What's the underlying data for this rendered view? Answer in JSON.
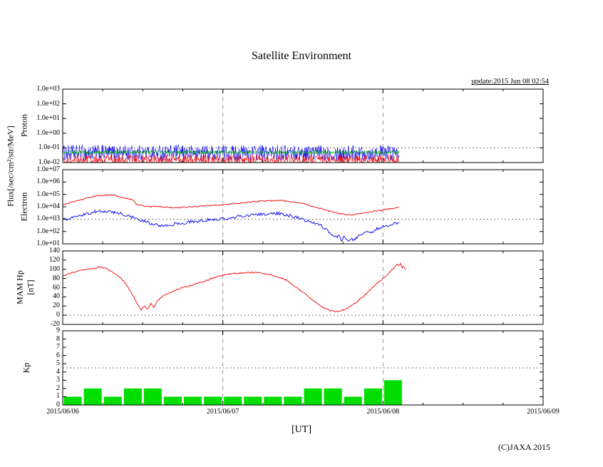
{
  "header": {
    "title": "Satellite Environment",
    "update": "update:2015 Jun 08 02:54"
  },
  "axes": {
    "flux_label": "Flux[/sec/cm²/str/MeV]",
    "proton_label": "Proton",
    "electron_label": "Electron",
    "mam_label": "MAM Hp",
    "mam_unit": "[nT]",
    "kp_label": "Kp",
    "x_label": "[UT]",
    "x_ticks": [
      "2015/06/06",
      "2015/06/07",
      "2015/06/08",
      "2015/06/09"
    ],
    "x_tick_days": [
      0,
      1,
      2,
      3
    ]
  },
  "footer": {
    "copyright": "(C)JAXA 2015"
  },
  "chart_data": [
    {
      "name": "proton",
      "type": "line",
      "ylabel": "Proton",
      "y_scale": "log",
      "ylim": [
        0.01,
        1000
      ],
      "y_ticks": [
        "1.0e+03",
        "1.0e+02",
        "1.0e+01",
        "1.0e+00",
        "1.0e-01",
        "1.0e-02"
      ],
      "y_tick_values": [
        1000,
        100,
        10,
        1,
        0.1,
        0.01
      ],
      "threshold": 0.1,
      "series": [
        {
          "name": "proton-flux-blue",
          "color": "#0000ee",
          "style": "noise",
          "t_start": 0,
          "t_end": 2.1,
          "center": 0.045,
          "log_jitter": 0.55
        },
        {
          "name": "proton-flux-red",
          "color": "#ee0000",
          "style": "noise",
          "t_start": 0,
          "t_end": 2.1,
          "center": 0.015,
          "log_jitter": 0.35
        },
        {
          "name": "proton-flux-green",
          "color": "#00aa00",
          "style": "noise",
          "t_start": 0,
          "t_end": 2.1,
          "center": 0.05,
          "log_jitter": 0.12
        }
      ]
    },
    {
      "name": "electron",
      "type": "line",
      "ylabel": "Electron",
      "y_scale": "log",
      "ylim": [
        10,
        10000000
      ],
      "y_ticks": [
        "1.0e+07",
        "1.0e+06",
        "1.0e+05",
        "1.0e+04",
        "1.0e+03",
        "1.0e+02",
        "1.0e+01"
      ],
      "y_tick_values": [
        10000000,
        1000000,
        100000,
        10000,
        1000,
        100,
        10
      ],
      "threshold": 1000,
      "series": [
        {
          "name": "electron-flux-blue",
          "color": "#0000ee",
          "jitter": 0.13,
          "points": [
            [
              0.0,
              900
            ],
            [
              0.05,
              1200
            ],
            [
              0.1,
              1800
            ],
            [
              0.15,
              2800
            ],
            [
              0.2,
              4000
            ],
            [
              0.25,
              4500
            ],
            [
              0.3,
              4000
            ],
            [
              0.35,
              3000
            ],
            [
              0.4,
              2000
            ],
            [
              0.45,
              1200
            ],
            [
              0.5,
              700
            ],
            [
              0.55,
              450
            ],
            [
              0.6,
              300
            ],
            [
              0.65,
              320
            ],
            [
              0.7,
              400
            ],
            [
              0.75,
              500
            ],
            [
              0.8,
              600
            ],
            [
              0.85,
              700
            ],
            [
              0.9,
              850
            ],
            [
              0.95,
              950
            ],
            [
              1.0,
              1100
            ],
            [
              1.05,
              1300
            ],
            [
              1.1,
              1600
            ],
            [
              1.15,
              1900
            ],
            [
              1.2,
              2200
            ],
            [
              1.25,
              2500
            ],
            [
              1.3,
              2700
            ],
            [
              1.35,
              2800
            ],
            [
              1.4,
              2200
            ],
            [
              1.45,
              1500
            ],
            [
              1.5,
              900
            ],
            [
              1.55,
              600
            ],
            [
              1.6,
              400
            ],
            [
              1.62,
              250
            ],
            [
              1.65,
              120
            ],
            [
              1.68,
              60
            ],
            [
              1.7,
              30
            ],
            [
              1.72,
              50
            ],
            [
              1.74,
              20
            ],
            [
              1.76,
              40
            ],
            [
              1.78,
              15
            ],
            [
              1.8,
              30
            ],
            [
              1.82,
              20
            ],
            [
              1.85,
              50
            ],
            [
              1.88,
              90
            ],
            [
              1.9,
              120
            ],
            [
              1.92,
              70
            ],
            [
              1.95,
              150
            ],
            [
              2.0,
              250
            ],
            [
              2.05,
              350
            ],
            [
              2.1,
              500
            ]
          ]
        },
        {
          "name": "electron-flux-red",
          "color": "#ee0000",
          "jitter": 0.05,
          "points": [
            [
              0.0,
              16000
            ],
            [
              0.05,
              22000
            ],
            [
              0.1,
              32000
            ],
            [
              0.15,
              50000
            ],
            [
              0.2,
              70000
            ],
            [
              0.25,
              85000
            ],
            [
              0.3,
              90000
            ],
            [
              0.33,
              80000
            ],
            [
              0.36,
              60000
            ],
            [
              0.4,
              45000
            ],
            [
              0.44,
              35000
            ],
            [
              0.46,
              16000
            ],
            [
              0.5,
              12000
            ],
            [
              0.55,
              10000
            ],
            [
              0.6,
              11000
            ],
            [
              0.65,
              9000
            ],
            [
              0.7,
              8500
            ],
            [
              0.75,
              9000
            ],
            [
              0.8,
              10000
            ],
            [
              0.85,
              11000
            ],
            [
              0.9,
              12000
            ],
            [
              0.95,
              13000
            ],
            [
              1.0,
              15000
            ],
            [
              1.05,
              17000
            ],
            [
              1.1,
              20000
            ],
            [
              1.15,
              23000
            ],
            [
              1.2,
              26000
            ],
            [
              1.25,
              29000
            ],
            [
              1.3,
              31000
            ],
            [
              1.35,
              32000
            ],
            [
              1.4,
              29000
            ],
            [
              1.45,
              24000
            ],
            [
              1.5,
              18000
            ],
            [
              1.55,
              12000
            ],
            [
              1.6,
              8000
            ],
            [
              1.65,
              5000
            ],
            [
              1.7,
              3500
            ],
            [
              1.75,
              2500
            ],
            [
              1.8,
              2200
            ],
            [
              1.85,
              2800
            ],
            [
              1.9,
              3500
            ],
            [
              1.95,
              4500
            ],
            [
              2.0,
              5500
            ],
            [
              2.05,
              7000
            ],
            [
              2.1,
              9000
            ]
          ]
        }
      ]
    },
    {
      "name": "mam-hp",
      "type": "line",
      "ylabel": "MAM Hp [nT]",
      "y_scale": "linear",
      "ylim": [
        -20,
        140
      ],
      "y_ticks": [
        "140",
        "120",
        "100",
        "80",
        "60",
        "40",
        "20",
        "0",
        "-20"
      ],
      "y_tick_values": [
        140,
        120,
        100,
        80,
        60,
        40,
        20,
        0,
        -20
      ],
      "threshold": 0,
      "series": [
        {
          "name": "mam-hp-red",
          "color": "#ee0000",
          "jitter": 1.5,
          "points": [
            [
              0.0,
              85
            ],
            [
              0.05,
              92
            ],
            [
              0.1,
              97
            ],
            [
              0.15,
              100
            ],
            [
              0.2,
              102
            ],
            [
              0.23,
              105
            ],
            [
              0.26,
              103
            ],
            [
              0.3,
              97
            ],
            [
              0.34,
              88
            ],
            [
              0.38,
              75
            ],
            [
              0.42,
              55
            ],
            [
              0.45,
              35
            ],
            [
              0.47,
              22
            ],
            [
              0.49,
              12
            ],
            [
              0.51,
              20
            ],
            [
              0.53,
              13
            ],
            [
              0.55,
              25
            ],
            [
              0.57,
              17
            ],
            [
              0.59,
              30
            ],
            [
              0.62,
              40
            ],
            [
              0.66,
              48
            ],
            [
              0.7,
              54
            ],
            [
              0.75,
              60
            ],
            [
              0.8,
              65
            ],
            [
              0.85,
              70
            ],
            [
              0.9,
              76
            ],
            [
              0.95,
              82
            ],
            [
              1.0,
              87
            ],
            [
              1.05,
              90
            ],
            [
              1.1,
              92
            ],
            [
              1.15,
              93
            ],
            [
              1.2,
              93
            ],
            [
              1.25,
              91
            ],
            [
              1.3,
              88
            ],
            [
              1.35,
              83
            ],
            [
              1.4,
              76
            ],
            [
              1.43,
              68
            ],
            [
              1.45,
              62
            ],
            [
              1.47,
              58
            ],
            [
              1.5,
              50
            ],
            [
              1.53,
              42
            ],
            [
              1.56,
              33
            ],
            [
              1.6,
              22
            ],
            [
              1.64,
              14
            ],
            [
              1.68,
              9
            ],
            [
              1.72,
              8
            ],
            [
              1.76,
              12
            ],
            [
              1.8,
              20
            ],
            [
              1.84,
              30
            ],
            [
              1.88,
              42
            ],
            [
              1.92,
              55
            ],
            [
              1.96,
              68
            ],
            [
              2.0,
              80
            ],
            [
              2.03,
              90
            ],
            [
              2.05,
              97
            ],
            [
              2.07,
              104
            ],
            [
              2.09,
              112
            ],
            [
              2.1,
              108
            ],
            [
              2.11,
              113
            ],
            [
              2.12,
              103
            ],
            [
              2.13,
              106
            ],
            [
              2.14,
              99
            ]
          ]
        }
      ]
    },
    {
      "name": "kp",
      "type": "bar",
      "ylabel": "Kp",
      "y_scale": "linear",
      "ylim": [
        0,
        9
      ],
      "y_ticks": [
        "9",
        "8",
        "7",
        "6",
        "5",
        "4",
        "3",
        "2",
        "1",
        "0"
      ],
      "y_tick_values": [
        9,
        8,
        7,
        6,
        5,
        4,
        3,
        2,
        1,
        0
      ],
      "threshold": 4.5,
      "series": [
        {
          "name": "kp-bars",
          "color": "#00dd00",
          "style": "bars",
          "interval_days": 0.125,
          "interval_hours": 3,
          "values": [
            1,
            2,
            1,
            2,
            2,
            1,
            1,
            1,
            1,
            1,
            1,
            1,
            2,
            2,
            1,
            2,
            3
          ]
        }
      ]
    }
  ]
}
